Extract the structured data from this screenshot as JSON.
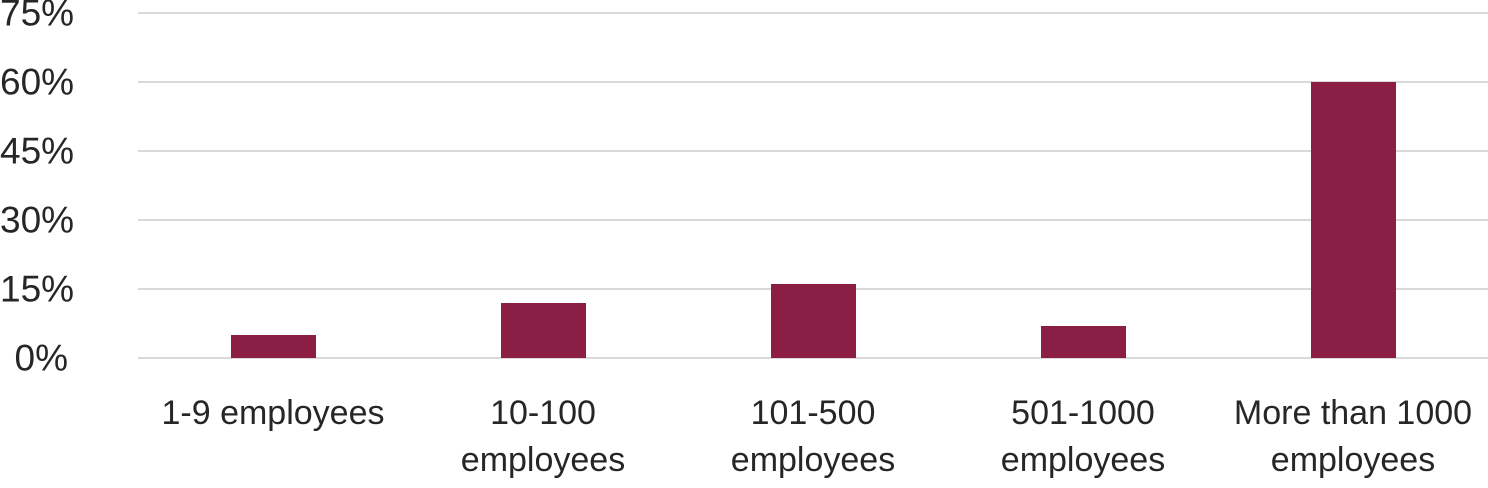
{
  "chart_data": {
    "type": "bar",
    "title": "",
    "xlabel": "",
    "ylabel": "",
    "categories": [
      "1-9 employees",
      "10-100 employees",
      "101-500 employees",
      "501-1000 employees",
      "More than 1000 employees"
    ],
    "values": [
      5,
      12,
      16,
      7,
      60
    ],
    "ylim": [
      0,
      75
    ],
    "yticks": [
      0,
      15,
      30,
      45,
      60,
      75
    ],
    "ytick_labels": [
      "0%",
      "15%",
      "30%",
      "45%",
      "60%",
      "75%"
    ],
    "grid": true,
    "legend": "none",
    "colors": {
      "bar": "#8A1E45",
      "gridline": "#D9D9D9",
      "text": "#262626",
      "background": "#FFFFFF"
    }
  }
}
